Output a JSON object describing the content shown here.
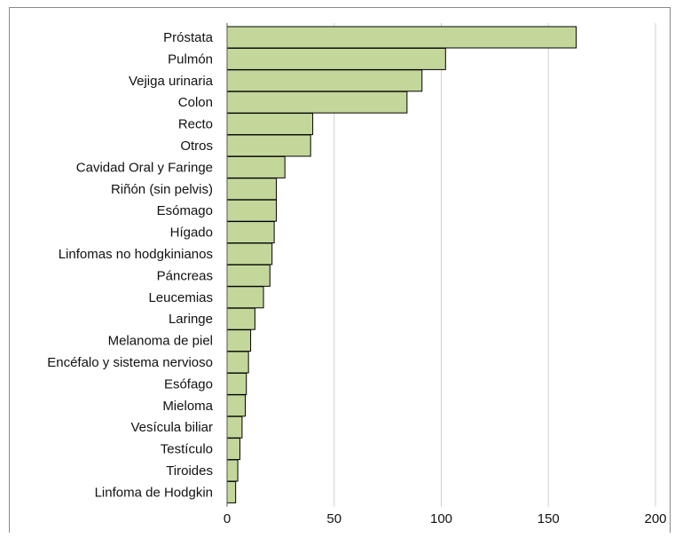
{
  "chart_data": {
    "type": "bar",
    "orientation": "horizontal",
    "categories": [
      "Próstata",
      "Pulmón",
      "Vejiga urinaria",
      "Colon",
      "Recto",
      "Otros",
      "Cavidad Oral y Faringe",
      "Riñón (sin pelvis)",
      "Esómago",
      "Hígado",
      "Linfomas no hodgkinianos",
      "Páncreas",
      "Leucemias",
      "Laringe",
      "Melanoma de piel",
      "Encéfalo y sistema nervioso",
      "Esófago",
      "Mieloma",
      "Vesícula biliar",
      "Testículo",
      "Tiroides",
      "Linfoma de Hodgkin"
    ],
    "values": [
      163,
      102,
      91,
      84,
      40,
      39,
      27,
      23,
      23,
      22,
      21,
      20,
      17,
      13,
      11,
      10,
      9,
      8.5,
      7,
      6,
      5,
      4
    ],
    "xlim": [
      0,
      200
    ],
    "xticks": [
      0,
      50,
      100,
      150,
      200
    ],
    "xtick_labels": [
      "0",
      "50",
      "100",
      "150",
      "200"
    ],
    "title": "",
    "xlabel": "",
    "ylabel": "",
    "grid": "vertical",
    "legend": "none",
    "colors": {
      "bar_fill": "#c4d79b",
      "bar_stroke": "#000000",
      "grid": "#d0d0d0"
    }
  }
}
